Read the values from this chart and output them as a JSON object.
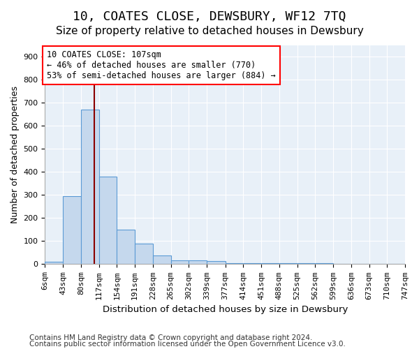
{
  "title": "10, COATES CLOSE, DEWSBURY, WF12 7TQ",
  "subtitle": "Size of property relative to detached houses in Dewsbury",
  "xlabel": "Distribution of detached houses by size in Dewsbury",
  "ylabel": "Number of detached properties",
  "bar_values": [
    10,
    295,
    670,
    380,
    150,
    90,
    38,
    15,
    15,
    12,
    5,
    3,
    3,
    3,
    3,
    3,
    2,
    2,
    2,
    2
  ],
  "bin_edges": [
    6,
    43,
    80,
    117,
    154,
    191,
    228,
    265,
    302,
    339,
    377,
    414,
    451,
    488,
    525,
    562,
    599,
    636,
    673,
    710,
    747
  ],
  "tick_labels": [
    "6sqm",
    "43sqm",
    "80sqm",
    "117sqm",
    "154sqm",
    "191sqm",
    "228sqm",
    "265sqm",
    "302sqm",
    "339sqm",
    "377sqm",
    "414sqm",
    "451sqm",
    "488sqm",
    "525sqm",
    "562sqm",
    "599sqm",
    "636sqm",
    "673sqm",
    "710sqm",
    "747sqm"
  ],
  "bar_color": "#c5d8ed",
  "bar_edge_color": "#5b9bd5",
  "vline_x": 107,
  "annotation_text": "10 COATES CLOSE: 107sqm\n← 46% of detached houses are smaller (770)\n53% of semi-detached houses are larger (884) →",
  "annotation_box_color": "white",
  "annotation_box_edge_color": "red",
  "vline_color": "darkred",
  "ylim": [
    0,
    950
  ],
  "yticks": [
    0,
    100,
    200,
    300,
    400,
    500,
    600,
    700,
    800,
    900
  ],
  "footer_line1": "Contains HM Land Registry data © Crown copyright and database right 2024.",
  "footer_line2": "Contains public sector information licensed under the Open Government Licence v3.0.",
  "bg_color": "#e8f0f8",
  "fig_bg_color": "white",
  "title_fontsize": 13,
  "subtitle_fontsize": 11,
  "axis_label_fontsize": 9,
  "tick_fontsize": 8,
  "footer_fontsize": 7.5
}
